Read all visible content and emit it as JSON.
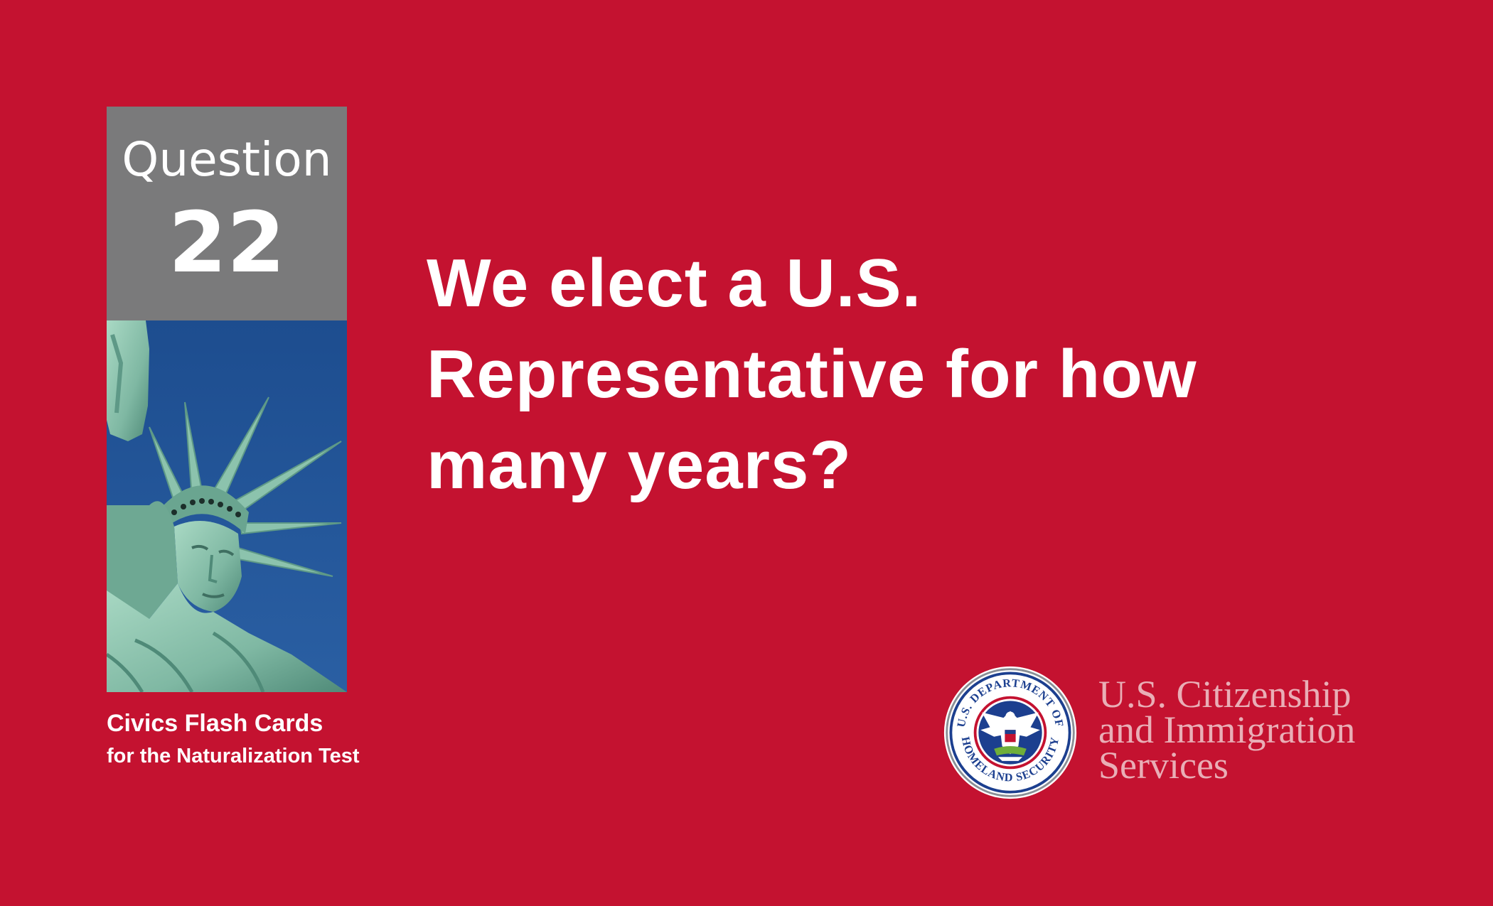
{
  "card": {
    "background_color": "#c41230",
    "question_badge": {
      "label": "Question",
      "number": "22",
      "color": "#7a7a7b"
    },
    "photo": {
      "icon": "statue-of-liberty-icon"
    },
    "series": {
      "title": "Civics Flash Cards",
      "subtitle": "for the Naturalization Test"
    },
    "question": {
      "lines": [
        "We elect a U.S.",
        "Representative for how",
        "many years?"
      ]
    },
    "agency": {
      "seal_icon": "dhs-seal-icon",
      "seal_text_top": "U.S. DEPARTMENT OF",
      "seal_text_bottom": "HOMELAND SECURITY",
      "name_lines": [
        "U.S. Citizenship",
        "and Immigration",
        "Services"
      ],
      "name_color": "#e9aeb6"
    }
  }
}
